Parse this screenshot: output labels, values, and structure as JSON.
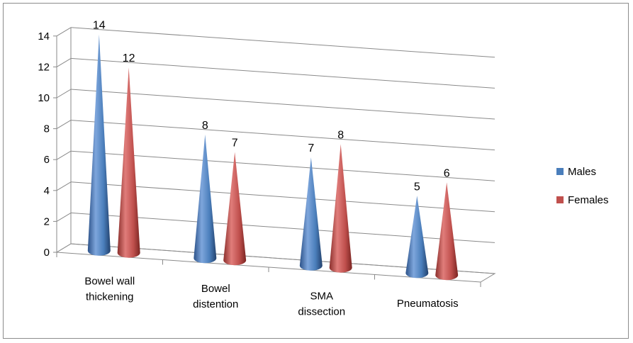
{
  "chart_data": {
    "type": "bar",
    "style": "3d-cone",
    "categories": [
      [
        "Bowel wall",
        "thickening"
      ],
      [
        "Bowel",
        "distention"
      ],
      [
        "SMA",
        "dissection"
      ],
      [
        "Pneumatosis"
      ]
    ],
    "series": [
      {
        "name": "Males",
        "values": [
          14,
          8,
          7,
          5
        ],
        "color": "#4a7ebb"
      },
      {
        "name": "Females",
        "values": [
          12,
          7,
          8,
          6
        ],
        "color": "#c0504d"
      }
    ],
    "y_ticks": [
      "0",
      "2",
      "4",
      "6",
      "8",
      "10",
      "12",
      "14"
    ],
    "ylim": [
      0,
      14
    ],
    "grid": true,
    "legend_position": "right"
  }
}
